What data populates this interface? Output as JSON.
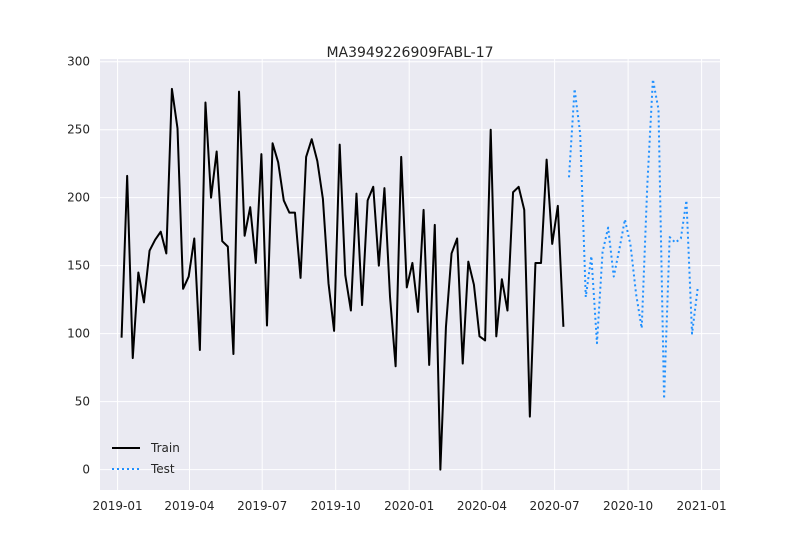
{
  "chart_data": {
    "type": "line",
    "title": "MA3949226909FABL-17",
    "xlabel": "",
    "ylabel": "",
    "x_type": "date",
    "xlim": [
      "2018-12-10",
      "2021-01-24"
    ],
    "ylim": [
      -15,
      302
    ],
    "x_ticks": [
      "2019-01-01",
      "2019-04-01",
      "2019-07-01",
      "2019-10-01",
      "2020-01-01",
      "2020-04-01",
      "2020-07-01",
      "2020-10-01",
      "2021-01-01"
    ],
    "x_tick_labels": [
      "2019-01",
      "2019-04",
      "2019-07",
      "2019-10",
      "2020-01",
      "2020-04",
      "2020-07",
      "2020-10",
      "2021-01"
    ],
    "y_ticks": [
      0,
      50,
      100,
      150,
      200,
      250,
      300
    ],
    "y_tick_labels": [
      "0",
      "50",
      "100",
      "150",
      "200",
      "250",
      "300"
    ],
    "grid": true,
    "legend_position": "lower-left",
    "colors": {
      "plot_bg": "#eaeaf2",
      "grid": "#ffffff"
    },
    "series": [
      {
        "name": "Train",
        "color": "#000000",
        "style": "solid",
        "points": [
          [
            "2019-01-06",
            97
          ],
          [
            "2019-01-13",
            216
          ],
          [
            "2019-01-20",
            82
          ],
          [
            "2019-01-27",
            145
          ],
          [
            "2019-02-03",
            123
          ],
          [
            "2019-02-10",
            161
          ],
          [
            "2019-02-17",
            169
          ],
          [
            "2019-02-24",
            175
          ],
          [
            "2019-03-03",
            159
          ],
          [
            "2019-03-10",
            280
          ],
          [
            "2019-03-17",
            251
          ],
          [
            "2019-03-24",
            133
          ],
          [
            "2019-03-31",
            142
          ],
          [
            "2019-04-07",
            170
          ],
          [
            "2019-04-14",
            88
          ],
          [
            "2019-04-21",
            270
          ],
          [
            "2019-04-28",
            200
          ],
          [
            "2019-05-05",
            234
          ],
          [
            "2019-05-12",
            168
          ],
          [
            "2019-05-19",
            164
          ],
          [
            "2019-05-26",
            85
          ],
          [
            "2019-06-02",
            278
          ],
          [
            "2019-06-09",
            172
          ],
          [
            "2019-06-16",
            193
          ],
          [
            "2019-06-23",
            152
          ],
          [
            "2019-06-30",
            232
          ],
          [
            "2019-07-07",
            106
          ],
          [
            "2019-07-14",
            240
          ],
          [
            "2019-07-21",
            226
          ],
          [
            "2019-07-28",
            198
          ],
          [
            "2019-08-04",
            189
          ],
          [
            "2019-08-11",
            189
          ],
          [
            "2019-08-18",
            141
          ],
          [
            "2019-08-25",
            230
          ],
          [
            "2019-09-01",
            243
          ],
          [
            "2019-09-08",
            227
          ],
          [
            "2019-09-15",
            199
          ],
          [
            "2019-09-22",
            137
          ],
          [
            "2019-09-29",
            102
          ],
          [
            "2019-10-06",
            239
          ],
          [
            "2019-10-13",
            143
          ],
          [
            "2019-10-20",
            117
          ],
          [
            "2019-10-27",
            203
          ],
          [
            "2019-11-03",
            121
          ],
          [
            "2019-11-10",
            198
          ],
          [
            "2019-11-17",
            208
          ],
          [
            "2019-11-24",
            150
          ],
          [
            "2019-12-01",
            207
          ],
          [
            "2019-12-08",
            127
          ],
          [
            "2019-12-15",
            76
          ],
          [
            "2019-12-22",
            230
          ],
          [
            "2019-12-29",
            134
          ],
          [
            "2020-01-05",
            152
          ],
          [
            "2020-01-12",
            116
          ],
          [
            "2020-01-19",
            191
          ],
          [
            "2020-01-26",
            77
          ],
          [
            "2020-02-02",
            180
          ],
          [
            "2020-02-09",
            0
          ],
          [
            "2020-02-16",
            105
          ],
          [
            "2020-02-23",
            159
          ],
          [
            "2020-03-01",
            170
          ],
          [
            "2020-03-08",
            78
          ],
          [
            "2020-03-15",
            153
          ],
          [
            "2020-03-22",
            136
          ],
          [
            "2020-03-29",
            98
          ],
          [
            "2020-04-05",
            95
          ],
          [
            "2020-04-12",
            250
          ],
          [
            "2020-04-19",
            98
          ],
          [
            "2020-04-26",
            140
          ],
          [
            "2020-05-03",
            117
          ],
          [
            "2020-05-10",
            204
          ],
          [
            "2020-05-17",
            208
          ],
          [
            "2020-05-24",
            191
          ],
          [
            "2020-05-31",
            39
          ],
          [
            "2020-06-07",
            152
          ],
          [
            "2020-06-14",
            152
          ],
          [
            "2020-06-21",
            228
          ],
          [
            "2020-06-28",
            166
          ],
          [
            "2020-07-05",
            194
          ],
          [
            "2020-07-12",
            105
          ]
        ]
      },
      {
        "name": "Test",
        "color": "#1e90ff",
        "style": "dotted",
        "points": [
          [
            "2020-07-19",
            215
          ],
          [
            "2020-07-26",
            280
          ],
          [
            "2020-08-02",
            247
          ],
          [
            "2020-08-09",
            127
          ],
          [
            "2020-08-16",
            157
          ],
          [
            "2020-08-23",
            93
          ],
          [
            "2020-08-30",
            160
          ],
          [
            "2020-09-06",
            178
          ],
          [
            "2020-09-13",
            142
          ],
          [
            "2020-09-20",
            162
          ],
          [
            "2020-09-27",
            184
          ],
          [
            "2020-10-04",
            165
          ],
          [
            "2020-10-11",
            129
          ],
          [
            "2020-10-18",
            104
          ],
          [
            "2020-10-25",
            209
          ],
          [
            "2020-11-01",
            287
          ],
          [
            "2020-11-08",
            265
          ],
          [
            "2020-11-15",
            52
          ],
          [
            "2020-11-22",
            171
          ],
          [
            "2020-11-29",
            167
          ],
          [
            "2020-12-06",
            170
          ],
          [
            "2020-12-13",
            198
          ],
          [
            "2020-12-20",
            100
          ],
          [
            "2020-12-27",
            133
          ]
        ]
      }
    ]
  }
}
